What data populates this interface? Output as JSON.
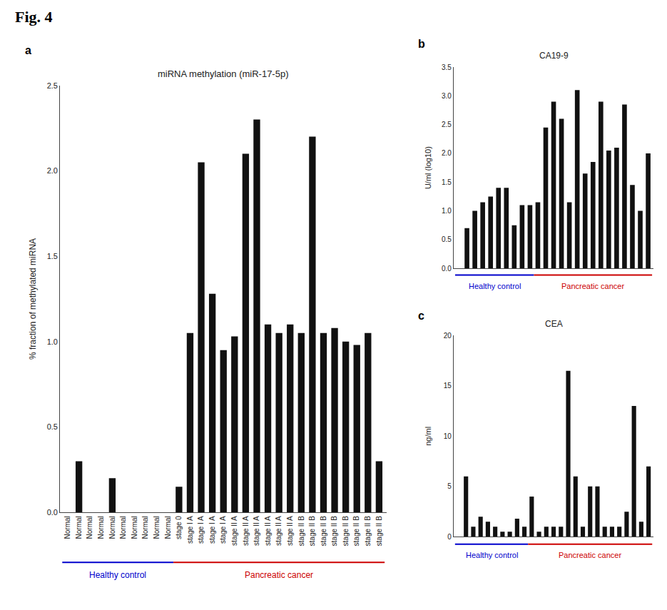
{
  "title": "Fig. 4",
  "chart_data": [
    {
      "type": "bar",
      "title": "miRNA methylation (miR-17-5p)",
      "ylabel": "% fraction of methylated miRNA",
      "categories": [
        "Normal",
        "Normal",
        "Normal",
        "Normal",
        "Normal",
        "Normal",
        "Normal",
        "Normal",
        "Normal",
        "Normal",
        "stage 0",
        "stage I A",
        "stage I A",
        "stage I A",
        "stage I A",
        "stage II A",
        "stage II A",
        "stage II A",
        "stage II A",
        "stage II A",
        "stage II A",
        "stage II B",
        "stage II B",
        "stage II B",
        "stage II B",
        "stage II B",
        "stage II B",
        "stage II B",
        "stage II B"
      ],
      "values": [
        0,
        0.3,
        0,
        0,
        0.2,
        0,
        0,
        0,
        0,
        0,
        0.15,
        1.05,
        2.05,
        1.28,
        0.95,
        1.03,
        2.1,
        2.3,
        1.1,
        1.05,
        1.1,
        1.05,
        2.2,
        1.05,
        1.08,
        1.0,
        0.98,
        1.05,
        0.3
      ],
      "color": "#111111",
      "ylim": [
        0,
        2.5
      ],
      "yticks": [
        {
          "value": 0,
          "label": "0.0"
        },
        0.5,
        {
          "value": 1.0,
          "label": "1.0"
        },
        1.5,
        {
          "value": 2.0,
          "label": "2.0"
        },
        2.5
      ],
      "grid": false,
      "annotations": [
        {
          "text": "a"
        },
        {
          "text": "Healthy control",
          "color": "#0000cc",
          "count": 10
        },
        {
          "text": "Pancreatic cancer",
          "color": "#cc0000",
          "count": 19
        }
      ]
    },
    {
      "type": "bar",
      "title": "CA19-9",
      "ylabel": "U/ml (log10)",
      "categories": [
        null,
        null,
        null,
        null,
        null,
        null,
        null,
        null,
        null,
        null,
        null,
        null,
        null,
        null,
        null,
        null,
        null,
        null,
        null,
        null,
        null,
        null,
        null,
        null,
        null
      ],
      "values": [
        0,
        0.7,
        1.0,
        1.15,
        1.25,
        1.4,
        1.4,
        0.75,
        1.1,
        1.1,
        1.15,
        2.45,
        2.9,
        2.6,
        1.15,
        3.1,
        1.65,
        1.85,
        2.9,
        2.05,
        2.1,
        2.85,
        1.45,
        1.0,
        2.0
      ],
      "color": "#111111",
      "ylim": [
        0,
        3.5
      ],
      "yticks": [
        {
          "value": 0,
          "label": "0.0"
        },
        0.5,
        {
          "value": 1.0,
          "label": "1.0"
        },
        1.5,
        {
          "value": 2.0,
          "label": "2.0"
        },
        2.5,
        {
          "value": 3.0,
          "label": "3.0"
        },
        3.5
      ],
      "grid": false,
      "tick_labels": "y",
      "annotations": [
        {
          "text": "b"
        },
        {
          "text": "Healthy control",
          "color": "#0000cc",
          "count": 10
        },
        {
          "text": "Pancreatic cancer",
          "color": "#cc0000",
          "count": 15
        }
      ]
    },
    {
      "type": "bar",
      "title": "CEA",
      "ylabel": "ng/ml",
      "categories": [
        null,
        null,
        null,
        null,
        null,
        null,
        null,
        null,
        null,
        null,
        null,
        null,
        null,
        null,
        null,
        null,
        null,
        null,
        null,
        null,
        null,
        null,
        null,
        null,
        null,
        null,
        null
      ],
      "values": [
        0,
        6.0,
        1.0,
        2.0,
        1.5,
        1.0,
        0.5,
        0.5,
        1.8,
        1.0,
        4.0,
        0.5,
        1.0,
        1.0,
        1.0,
        16.5,
        6.0,
        1.0,
        5.0,
        5.0,
        1.0,
        1.0,
        1.0,
        2.5,
        13.0,
        1.5,
        7.0
      ],
      "color": "#111111",
      "ylim": [
        0,
        20
      ],
      "yticks": [
        0,
        5,
        10,
        15,
        20
      ],
      "grid": false,
      "tick_labels": "y",
      "annotations": [
        {
          "text": "c"
        },
        {
          "text": "Healthy control",
          "color": "#0000cc",
          "count": 10
        },
        {
          "text": "Pancreatic cancer",
          "color": "#cc0000",
          "count": 17
        }
      ]
    }
  ]
}
